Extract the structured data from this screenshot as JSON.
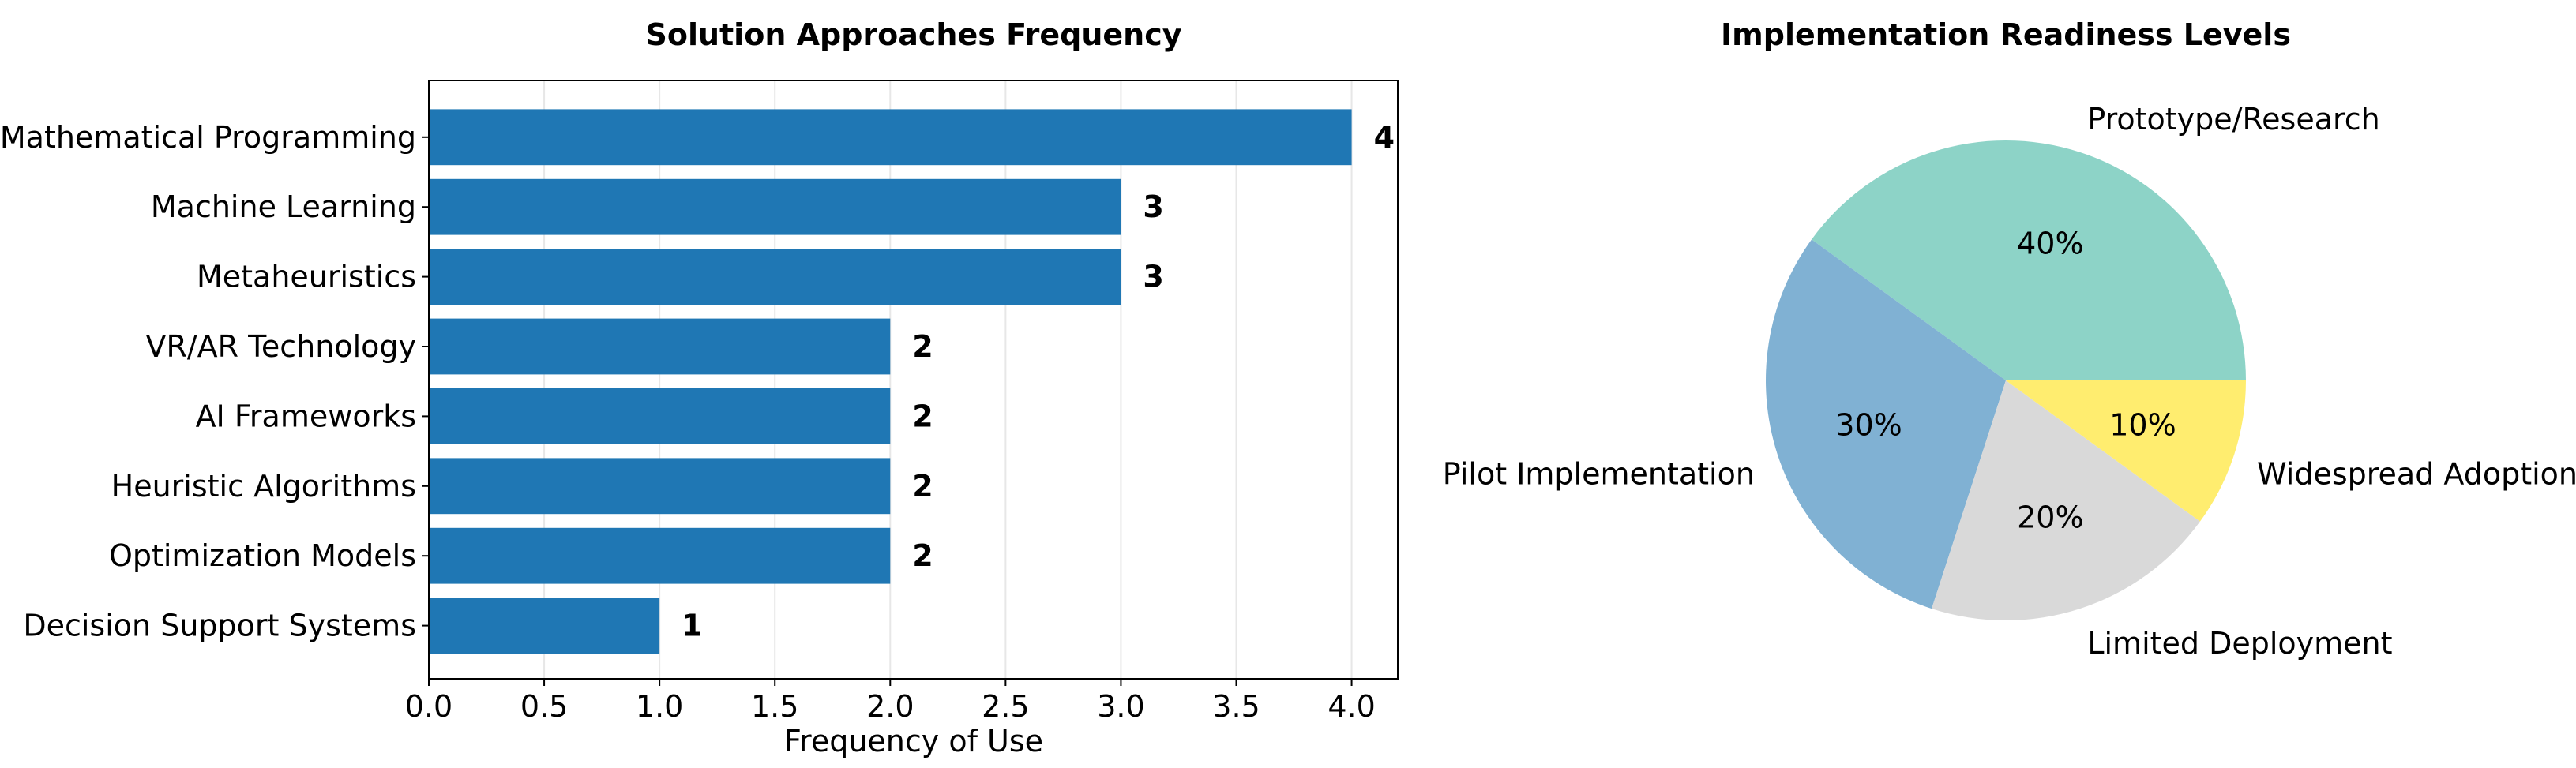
{
  "chart_data": [
    {
      "type": "bar",
      "orientation": "horizontal",
      "title": "Solution Approaches Frequency",
      "xlabel": "Frequency of Use",
      "ylabel": "",
      "categories": [
        "Mathematical Programming",
        "Machine Learning",
        "Metaheuristics",
        "VR/AR Technology",
        "AI Frameworks",
        "Heuristic Algorithms",
        "Optimization Models",
        "Decision Support Systems"
      ],
      "values": [
        4,
        3,
        3,
        2,
        2,
        2,
        2,
        1
      ],
      "value_labels": [
        "4",
        "3",
        "3",
        "2",
        "2",
        "2",
        "2",
        "1"
      ],
      "xlim": [
        0,
        4.2
      ],
      "xticks": [
        0.0,
        0.5,
        1.0,
        1.5,
        2.0,
        2.5,
        3.0,
        3.5,
        4.0
      ],
      "xtick_labels": [
        "0.0",
        "0.5",
        "1.0",
        "1.5",
        "2.0",
        "2.5",
        "3.0",
        "3.5",
        "4.0"
      ],
      "grid": "x",
      "bar_color": "#1f77b4"
    },
    {
      "type": "pie",
      "title": "Implementation Readiness Levels",
      "labels": [
        "Prototype/Research",
        "Pilot Implementation",
        "Limited Deployment",
        "Widespread Adoption"
      ],
      "values": [
        40,
        30,
        20,
        10
      ],
      "pct_labels": [
        "40%",
        "30%",
        "20%",
        "10%"
      ],
      "colors": [
        "#8dd3c7",
        "#80b1d3",
        "#d9d9d9",
        "#ffed6f"
      ],
      "start_angle_deg": 0,
      "direction": "counterclockwise"
    }
  ]
}
